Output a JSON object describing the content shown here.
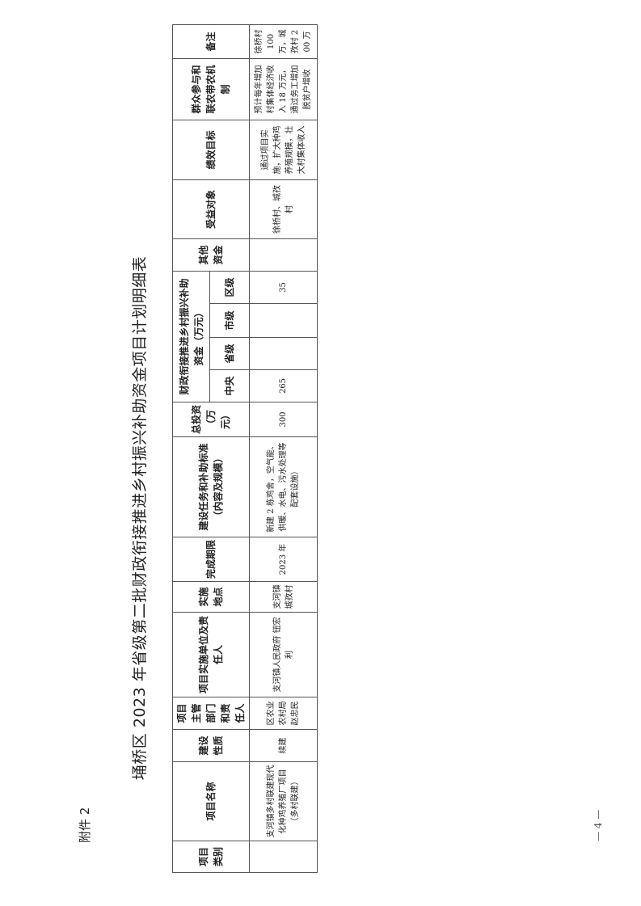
{
  "attachment_label": "附件 2",
  "title": "埇桥区 2023 年省级第二批财政衔接推进乡村振兴补助资金项目计划明细表",
  "page_number": "— 4 —",
  "table": {
    "headers": {
      "category": "项目类别",
      "name": "项目名称",
      "nature": "建设性质",
      "dept": "项目主管部门和责任人",
      "unit": "项目实施单位及责任人",
      "location": "实施地点",
      "deadline": "完成期限",
      "task": "建设任务和补助标准（内容及规模）",
      "total": "总投资（万元）",
      "funding": "财政衔接推进乡村振兴补助资金（万元）",
      "central": "中央",
      "province": "省级",
      "city": "市级",
      "district": "区级",
      "other": "其他资金",
      "beneficiary": "受益对象",
      "goal": "绩效目标",
      "mechanism": "群众参与和联农带农机制",
      "remark": "备注"
    },
    "rows": [
      {
        "category": "",
        "name": "支河镇多村联建现代化种鸡养殖厂项目（多村联建）",
        "nature": "续建",
        "dept": "区农业农村局赵忠民",
        "unit": "支河镇人民政府 钮宏利",
        "location": "支河镇城孜村",
        "deadline": "2023 年",
        "task": "新建 2 栋鸡舍，空气能、供暖、水电、污水处理等配套设施）",
        "total": "300",
        "central": "265",
        "province": "",
        "city": "",
        "district": "35",
        "other": "",
        "beneficiary": "徐桥村、城孜村",
        "goal": "通过项目实施，扩大种鸡养殖规模，壮大村集体收入",
        "mechanism": "预计每年增加村集体经济收入 18 万元，通过务工增加脱贫户增收",
        "remark": "徐桥村 100 万，城孜村 200 万"
      }
    ]
  }
}
